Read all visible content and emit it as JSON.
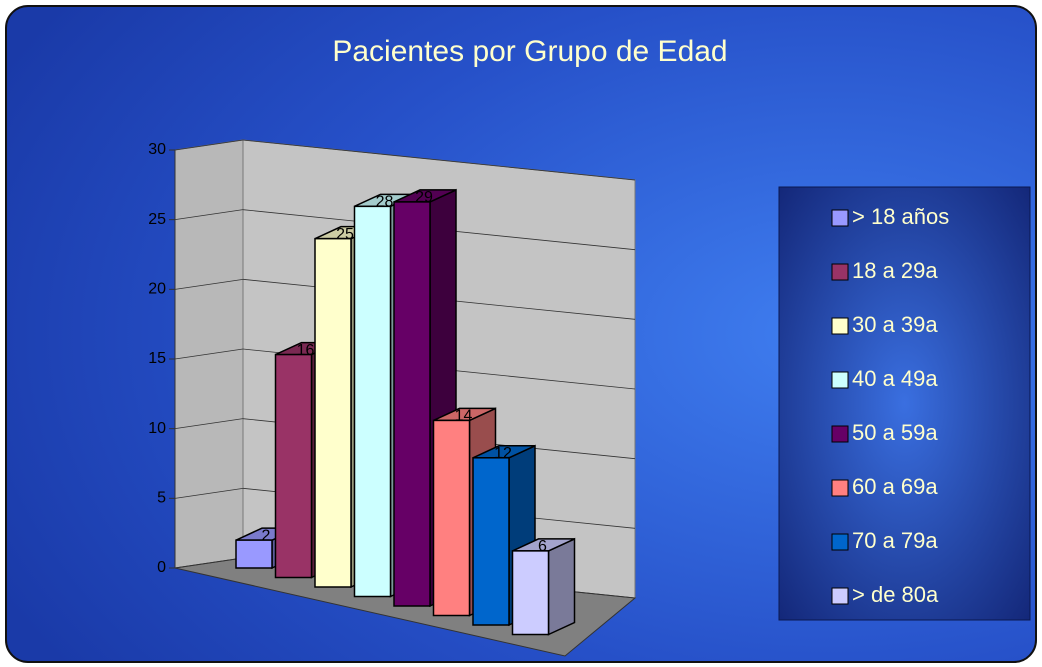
{
  "chart_data": {
    "type": "bar3d",
    "title": "Pacientes por Grupo de Edad",
    "series": [
      {
        "name": "> 18 años",
        "color": "#9999ff",
        "values": [
          2
        ]
      },
      {
        "name": "18 a 29a",
        "color": "#993366",
        "values": [
          16
        ]
      },
      {
        "name": "30 a 39a",
        "color": "#ffffcc",
        "values": [
          25
        ]
      },
      {
        "name": "40 a 49a",
        "color": "#ccffff",
        "values": [
          28
        ]
      },
      {
        "name": "50 a 59a",
        "color": "#660066",
        "values": [
          29
        ]
      },
      {
        "name": "60 a 69a",
        "color": "#ff8080",
        "values": [
          14
        ]
      },
      {
        "name": "70 a 79a",
        "color": "#0066cc",
        "values": [
          12
        ]
      },
      {
        "name": "> de 80a",
        "color": "#ccccff",
        "values": [
          6
        ]
      }
    ],
    "ylim": [
      0,
      30
    ],
    "yticks": [
      0,
      5,
      10,
      15,
      20,
      25,
      30
    ],
    "grid": true,
    "legend": "right"
  }
}
